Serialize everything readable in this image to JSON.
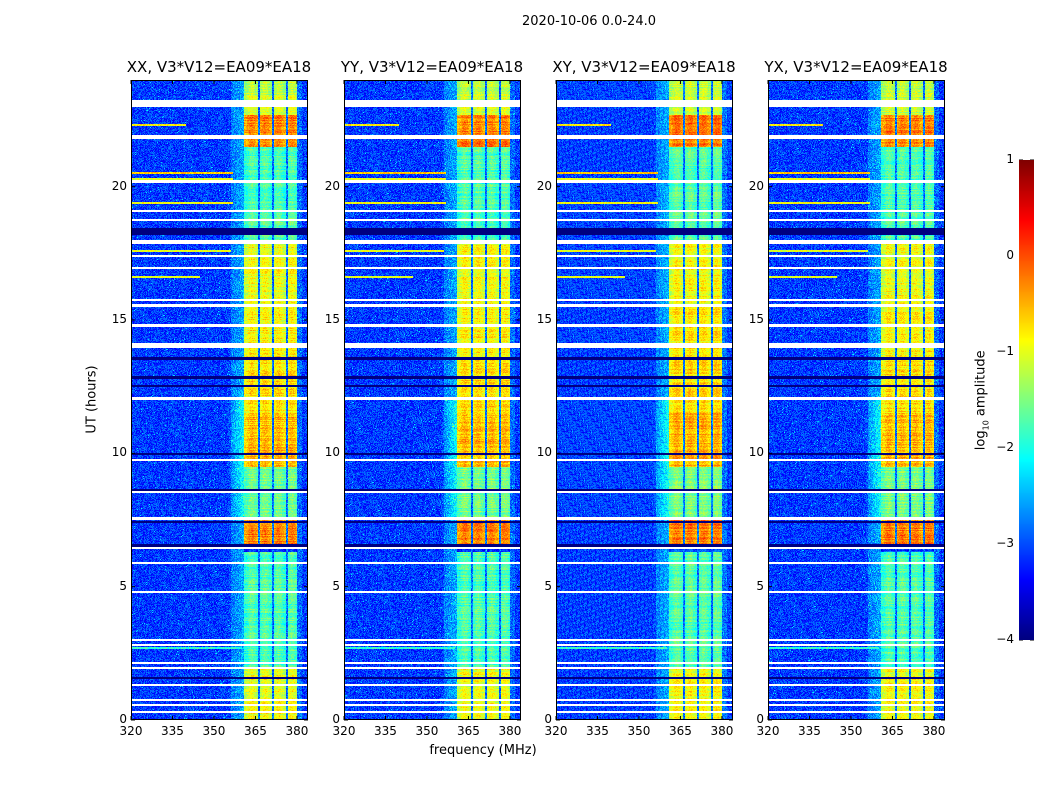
{
  "chart_data": {
    "type": "heatmap",
    "title": "2020-10-06 0.0-24.0",
    "panels": [
      {
        "title": "XX, V3*V12=EA09*EA18",
        "seed": 11
      },
      {
        "title": "YY, V3*V12=EA09*EA18",
        "seed": 23
      },
      {
        "title": "XY, V3*V12=EA09*EA18",
        "seed": 37
      },
      {
        "title": "YX, V3*V12=EA09*EA18",
        "seed": 51
      }
    ],
    "xlabel": "frequency (MHz)",
    "ylabel": "UT (hours)",
    "xlim": [
      320,
      384
    ],
    "ylim": [
      0,
      24
    ],
    "xticks": [
      320,
      335,
      350,
      365,
      380
    ],
    "yticks": [
      0,
      5,
      10,
      15,
      20
    ],
    "colormap": "jet",
    "colorbar": {
      "label": "log10 amplitude",
      "label_main": "log",
      "label_sub": "10",
      "label_rest": " amplitude",
      "range": [
        -4,
        1
      ],
      "ticks": [
        1,
        0,
        -1,
        -2,
        -3,
        -4
      ],
      "tick_labels": [
        "1",
        "0",
        "−1",
        "−2",
        "−3",
        "−4"
      ]
    },
    "background_level": -3.1,
    "rfi_channels_mhz": [
      [
        361,
        366
      ],
      [
        366.7,
        371
      ],
      [
        371.7,
        376
      ],
      [
        376.7,
        380
      ]
    ],
    "band_levels": [
      {
        "hours": [
          0,
          2
        ],
        "level": -1.0
      },
      {
        "hours": [
          2,
          6.3
        ],
        "level": -1.8
      },
      {
        "hours": [
          6.5,
          7.5
        ],
        "level": -0.3
      },
      {
        "hours": [
          7.6,
          9.5
        ],
        "level": -1.6
      },
      {
        "hours": [
          9.5,
          11.5
        ],
        "level": -0.6
      },
      {
        "hours": [
          11.5,
          13.6
        ],
        "level": -0.8
      },
      {
        "hours": [
          13.6,
          15.5
        ],
        "level": -0.9
      },
      {
        "hours": [
          15.5,
          18
        ],
        "level": -1.0
      },
      {
        "hours": [
          18,
          21.5
        ],
        "level": -1.8
      },
      {
        "hours": [
          21.5,
          22.7
        ],
        "level": -0.3
      },
      {
        "hours": [
          22.7,
          24
        ],
        "level": -1.2
      }
    ],
    "flagged_hours": [
      [
        23.0,
        23.25
      ],
      [
        21.8,
        21.92
      ],
      [
        20.15,
        20.25
      ],
      [
        19.05,
        19.12
      ],
      [
        18.7,
        18.78
      ],
      [
        17.85,
        18.0
      ],
      [
        17.35,
        17.45
      ],
      [
        16.9,
        17.0
      ],
      [
        15.7,
        15.8
      ],
      [
        15.5,
        15.6
      ],
      [
        14.75,
        14.85
      ],
      [
        13.95,
        14.15
      ],
      [
        12.0,
        12.1
      ],
      [
        9.7,
        9.8
      ],
      [
        8.5,
        8.6
      ],
      [
        7.5,
        7.62
      ],
      [
        6.4,
        6.5
      ],
      [
        5.85,
        5.92
      ],
      [
        4.75,
        4.82
      ],
      [
        2.95,
        3.02
      ],
      [
        2.77,
        2.84
      ],
      [
        2.1,
        2.18
      ],
      [
        1.9,
        1.98
      ],
      [
        1.27,
        1.35
      ],
      [
        0.72,
        0.78
      ],
      [
        0.52,
        0.6
      ],
      [
        0.27,
        0.33
      ]
    ],
    "dark_hours": [
      [
        18.2,
        18.45
      ],
      [
        13.5,
        13.6
      ],
      [
        12.8,
        12.9
      ],
      [
        12.5,
        12.55
      ],
      [
        9.95,
        10.0
      ],
      [
        8.6,
        8.65
      ],
      [
        7.4,
        7.48
      ],
      [
        6.5,
        6.6
      ],
      [
        1.55,
        1.62
      ]
    ],
    "narrowband_rfi": [
      {
        "hour": 22.3,
        "freq": [
          320,
          340
        ],
        "level": -0.8
      },
      {
        "hour": 20.5,
        "freq": [
          320,
          357
        ],
        "level": -0.6
      },
      {
        "hour": 20.3,
        "freq": [
          320,
          357
        ],
        "level": -1.0
      },
      {
        "hour": 19.4,
        "freq": [
          320,
          357
        ],
        "level": -0.9
      },
      {
        "hour": 17.6,
        "freq": [
          320,
          356
        ],
        "level": -1.0
      },
      {
        "hour": 16.6,
        "freq": [
          320,
          345
        ],
        "level": -1.0
      },
      {
        "hour": 2.7,
        "freq": [
          320,
          360
        ],
        "level": -1.9
      }
    ]
  }
}
